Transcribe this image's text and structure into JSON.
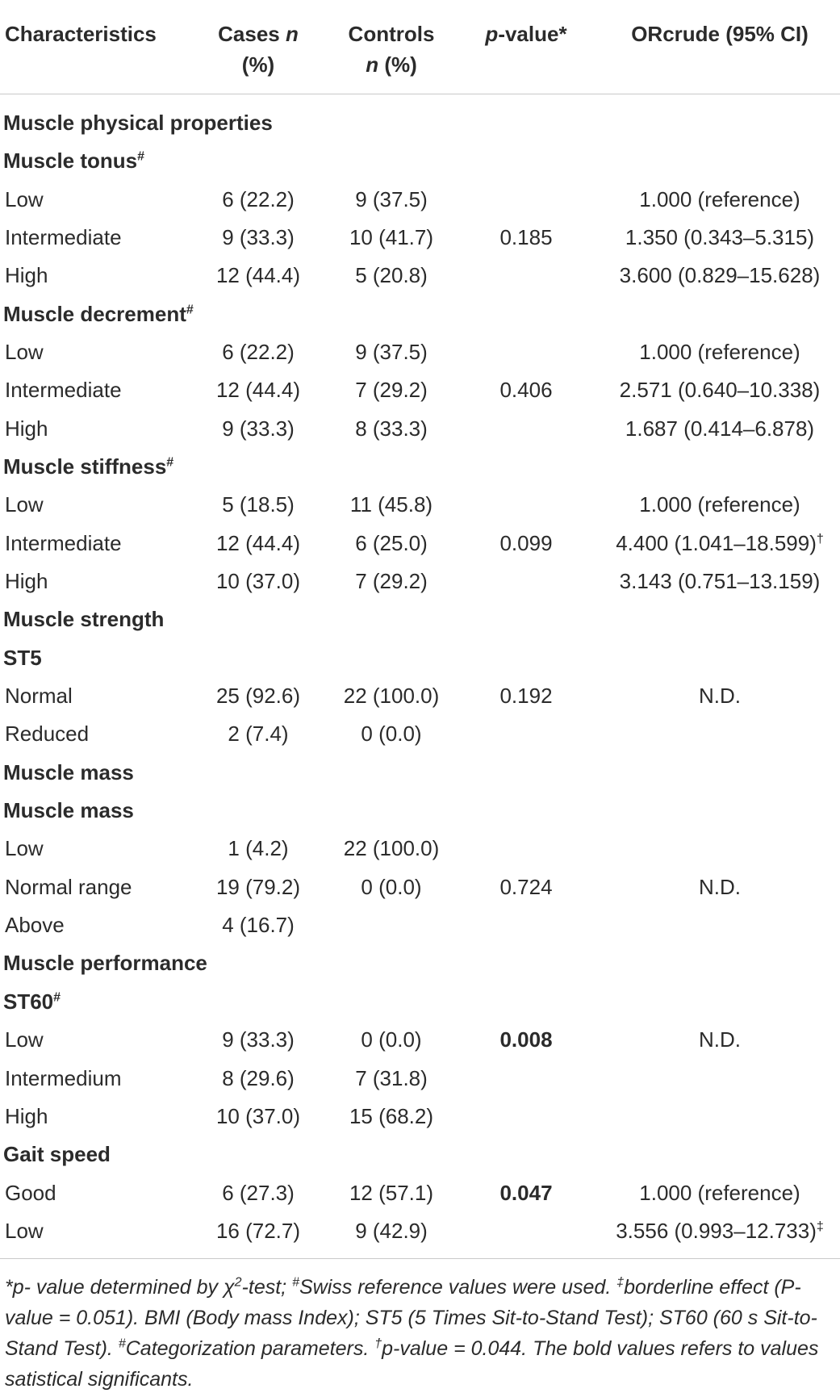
{
  "table": {
    "header": [
      [
        [
          {
            "text": "Characteristics"
          }
        ]
      ],
      [
        [
          {
            "text": "Cases "
          },
          {
            "text": "n",
            "italic": true
          }
        ],
        [
          {
            "text": "(%)"
          }
        ]
      ],
      [
        [
          {
            "text": "Controls"
          }
        ],
        [
          {
            "text": "n",
            "italic": true
          },
          {
            "text": " (%)"
          }
        ]
      ],
      [
        [
          {
            "text": "p",
            "italic": true
          },
          {
            "text": "-value*"
          }
        ]
      ],
      [
        [
          {
            "text": "ORcrude (95% CI)"
          }
        ]
      ]
    ],
    "rows": [
      {
        "kind": "group",
        "label": "Muscle physical properties"
      },
      {
        "kind": "group",
        "label": "Muscle tonus",
        "sup": "#"
      },
      {
        "label": "Low",
        "cases": "6 (22.2)",
        "controls": "9 (37.5)",
        "or": "1.000 (reference)"
      },
      {
        "label": "Intermediate",
        "cases": "9 (33.3)",
        "controls": "10 (41.7)",
        "p": "0.185",
        "or": "1.350 (0.343–5.315)"
      },
      {
        "label": "High",
        "cases": "12 (44.4)",
        "controls": "5 (20.8)",
        "or": "3.600 (0.829–15.628)"
      },
      {
        "kind": "group",
        "label": "Muscle decrement",
        "sup": "#"
      },
      {
        "label": "Low",
        "cases": "6 (22.2)",
        "controls": "9 (37.5)",
        "or": "1.000 (reference)"
      },
      {
        "label": "Intermediate",
        "cases": "12 (44.4)",
        "controls": "7 (29.2)",
        "p": "0.406",
        "or": "2.571 (0.640–10.338)"
      },
      {
        "label": "High",
        "cases": "9 (33.3)",
        "controls": "8 (33.3)",
        "or": "1.687 (0.414–6.878)"
      },
      {
        "kind": "group",
        "label": "Muscle stiffness",
        "sup": "#"
      },
      {
        "label": "Low",
        "cases": "5 (18.5)",
        "controls": "11 (45.8)",
        "or": "1.000 (reference)"
      },
      {
        "label": "Intermediate",
        "cases": "12 (44.4)",
        "controls": "6 (25.0)",
        "p": "0.099",
        "or": "4.400 (1.041–18.599)",
        "or_sup": "†"
      },
      {
        "label": "High",
        "cases": "10 (37.0)",
        "controls": "7 (29.2)",
        "or": "3.143 (0.751–13.159)"
      },
      {
        "kind": "group",
        "label": "Muscle strength"
      },
      {
        "kind": "group",
        "label": "ST5"
      },
      {
        "label": "Normal",
        "cases": "25 (92.6)",
        "controls": "22 (100.0)",
        "p": "0.192",
        "or": "N.D."
      },
      {
        "label": "Reduced",
        "cases": "2 (7.4)",
        "controls": "0 (0.0)"
      },
      {
        "kind": "group",
        "label": "Muscle mass"
      },
      {
        "kind": "group",
        "label": "Muscle mass"
      },
      {
        "label": "Low",
        "cases": "1 (4.2)",
        "controls": "22 (100.0)"
      },
      {
        "label": "Normal range",
        "cases": "19 (79.2)",
        "controls": "0 (0.0)",
        "p": "0.724",
        "or": "N.D."
      },
      {
        "label": "Above",
        "cases": "4 (16.7)"
      },
      {
        "kind": "group",
        "label": "Muscle performance"
      },
      {
        "kind": "group",
        "label": "ST60",
        "sup": "#"
      },
      {
        "label": "Low",
        "cases": "9 (33.3)",
        "controls": "0 (0.0)",
        "p": "0.008",
        "p_bold": true,
        "or": "N.D."
      },
      {
        "label": "Intermedium",
        "cases": "8 (29.6)",
        "controls": "7 (31.8)"
      },
      {
        "label": "High",
        "cases": "10 (37.0)",
        "controls": "15 (68.2)"
      },
      {
        "kind": "group",
        "label": "Gait speed"
      },
      {
        "label": "Good",
        "cases": "6 (27.3)",
        "controls": "12 (57.1)",
        "p": "0.047",
        "p_bold": true,
        "or": "1.000 (reference)"
      },
      {
        "label": "Low",
        "cases": "16 (72.7)",
        "controls": "9 (42.9)",
        "or": "3.556 (0.993–12.733)",
        "or_sup": "‡"
      }
    ],
    "footnote": [
      {
        "text": "*p- value determined by χ"
      },
      {
        "text": "2",
        "sup": true
      },
      {
        "text": "-test; "
      },
      {
        "text": "#",
        "sup": true
      },
      {
        "text": "Swiss reference values were used. "
      },
      {
        "text": "‡",
        "sup": true
      },
      {
        "text": "borderline effect (P-value = 0.051). BMI (Body mass Index); ST5 (5 Times Sit-to-Stand Test); ST60 (60 s Sit-to-Stand Test). "
      },
      {
        "text": "#",
        "sup": true
      },
      {
        "text": "Categorization parameters. "
      },
      {
        "text": "†",
        "sup": true
      },
      {
        "text": "p-value = 0.044. The bold values refers to values satistical significants."
      }
    ]
  }
}
